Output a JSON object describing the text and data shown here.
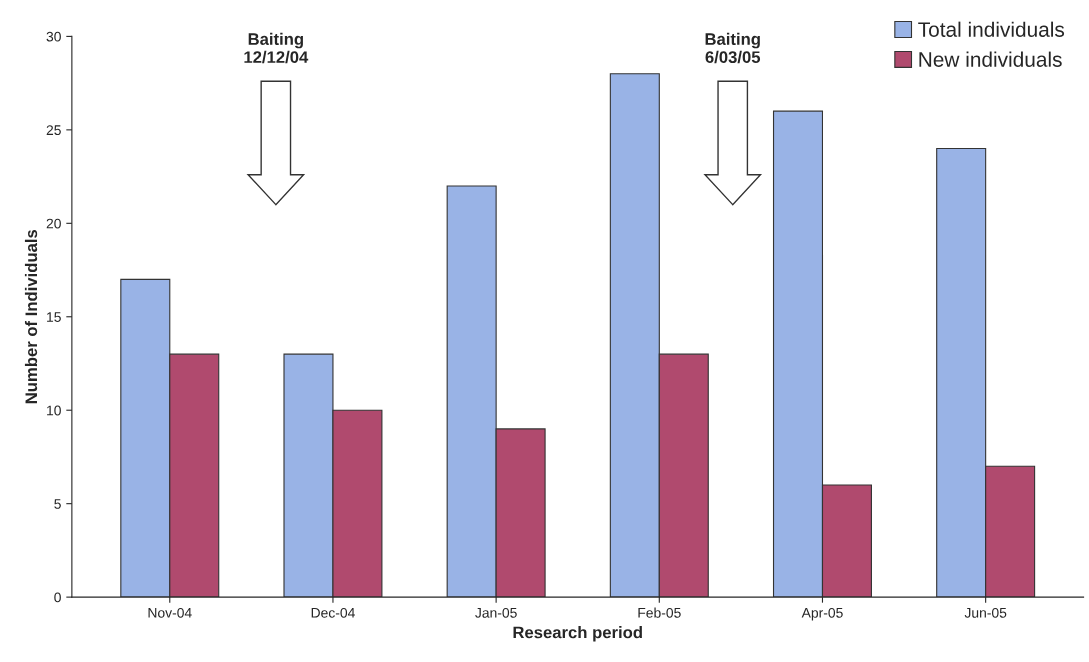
{
  "chart_data": {
    "type": "bar",
    "xlabel": "Research period",
    "ylabel": "Number of Individuals",
    "categories": [
      "Nov-04",
      "Dec-04",
      "Jan-05",
      "Feb-05",
      "Apr-05",
      "Jun-05"
    ],
    "series": [
      {
        "name": "Total individuals",
        "color": "#99b3e6",
        "values": [
          17,
          13,
          22,
          28,
          26,
          24
        ]
      },
      {
        "name": "New individuals",
        "color": "#b04a6e",
        "values": [
          13,
          10,
          9,
          13,
          6,
          7
        ]
      }
    ],
    "annotations": [
      "Baiting\n12/12/04",
      "Baiting\n6/03/05"
    ],
    "ylim": [
      0,
      30
    ],
    "yticks": [
      0,
      5,
      10,
      15,
      20,
      25,
      30
    ],
    "grid": false,
    "legend": "top right"
  }
}
